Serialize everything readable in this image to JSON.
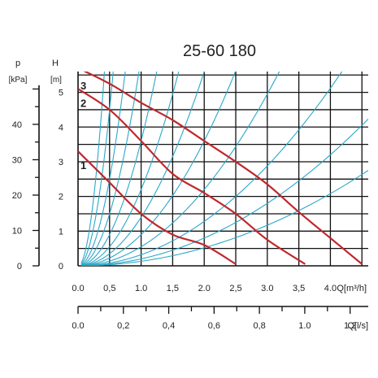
{
  "chart_data": {
    "type": "line",
    "title": "25-60 180",
    "colors": {
      "curve": "#c0282d",
      "system": "#2aa8c9",
      "grid": "#111111",
      "text": "#222222"
    },
    "grid": true,
    "xlim": [
      0,
      4.6
    ],
    "ylim": [
      0,
      5.6
    ],
    "x_axis": {
      "label": "Q[m³/h]",
      "ticks": [
        0,
        0.5,
        1,
        1.5,
        2,
        2.5,
        3,
        3.5,
        4
      ],
      "tick_labels": [
        "0.0",
        "0,5",
        "1.0",
        "1,5",
        "2.0",
        "2,5",
        "3.0",
        "3,5",
        "4.0"
      ]
    },
    "y_axis": {
      "label": "H",
      "unit": "[m]",
      "ticks": [
        0,
        1,
        2,
        3,
        4,
        5
      ],
      "tick_labels": [
        "0",
        "1",
        "2",
        "3",
        "4",
        "5"
      ]
    },
    "pressure_axis": {
      "label": "p",
      "unit": "[kPa]",
      "ticks": [
        0,
        10,
        20,
        30,
        40
      ],
      "tick_labels": [
        "0",
        "10",
        "20",
        "30",
        "40"
      ]
    },
    "flow_axis_ls": {
      "label": "Q[l/s]",
      "ticks": [
        0,
        0.2,
        0.4,
        0.6,
        0.8,
        1.0,
        1.2
      ],
      "tick_labels": [
        "0.0",
        "0,2",
        "0,4",
        "0,6",
        "0,8",
        "1.0",
        "1.2"
      ],
      "max": 1.28
    },
    "series": [
      {
        "name": "1",
        "points": [
          [
            0,
            3.3
          ],
          [
            0.5,
            2.4
          ],
          [
            1.0,
            1.5
          ],
          [
            1.5,
            0.9
          ],
          [
            2.0,
            0.6
          ],
          [
            2.5,
            0.05
          ]
        ]
      },
      {
        "name": "2",
        "points": [
          [
            0,
            5.1
          ],
          [
            0.5,
            4.5
          ],
          [
            1.0,
            3.6
          ],
          [
            1.5,
            2.65
          ],
          [
            2.0,
            2.1
          ],
          [
            2.5,
            1.5
          ],
          [
            3.0,
            0.75
          ],
          [
            3.6,
            0.05
          ]
        ]
      },
      {
        "name": "3",
        "points": [
          [
            0,
            5.7
          ],
          [
            0.5,
            5.25
          ],
          [
            1.0,
            4.7
          ],
          [
            1.5,
            4.2
          ],
          [
            2.0,
            3.6
          ],
          [
            2.5,
            3.0
          ],
          [
            3.0,
            2.35
          ],
          [
            3.5,
            1.55
          ],
          [
            4.0,
            0.8
          ],
          [
            4.5,
            0.05
          ]
        ]
      }
    ],
    "system_curves": [
      {
        "k": 32.0
      },
      {
        "k": 18.0
      },
      {
        "k": 10.0
      },
      {
        "k": 6.0
      },
      {
        "k": 3.6
      },
      {
        "k": 2.2
      },
      {
        "k": 1.4
      },
      {
        "k": 0.9
      },
      {
        "k": 0.55
      },
      {
        "k": 0.32
      },
      {
        "k": 0.2
      },
      {
        "k": 0.13
      }
    ]
  }
}
